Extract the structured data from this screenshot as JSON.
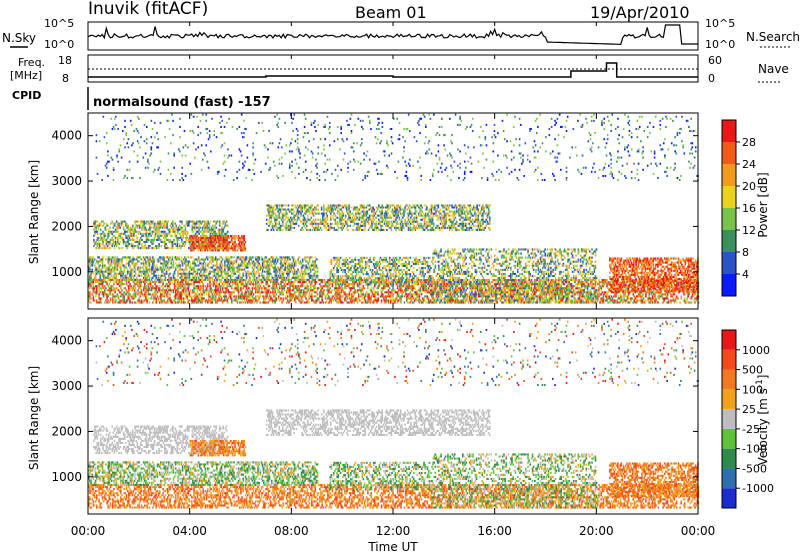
{
  "header": {
    "station": "Inuvik (fitACF)",
    "beam": "Beam 01",
    "date": "19/Apr/2010"
  },
  "noise_panel": {
    "left_label": "N.Sky",
    "right_label": "N.Search",
    "left_ticks": [
      "10^5",
      "10^0"
    ],
    "right_ticks": [
      "10^5",
      "10^0"
    ]
  },
  "freq_panel": {
    "left_label_1": "Freq.",
    "left_label_2": "[MHz]",
    "right_label": "Nave",
    "left_ticks": [
      "18",
      "8"
    ],
    "right_ticks": [
      "60",
      "0"
    ]
  },
  "cpid": {
    "label": "CPID",
    "program": "normalsound (fast) -157"
  },
  "chart_data": [
    {
      "type": "heatmap",
      "panel": "power",
      "ylabel": "Slant Range [km]",
      "yticks": [
        "1000",
        "2000",
        "3000",
        "4000"
      ],
      "ylim": [
        180,
        4500
      ],
      "xlim_hours": [
        0,
        24
      ],
      "colorbar": {
        "label": "Power [dB]",
        "ticks": [
          "4",
          "8",
          "12",
          "16",
          "20",
          "24",
          "28"
        ],
        "colors": [
          "#0a1aff",
          "#2a52c8",
          "#3b8f5c",
          "#7ac34a",
          "#e8d21e",
          "#f29a1c",
          "#f25a1a",
          "#e81818"
        ]
      }
    },
    {
      "type": "heatmap",
      "panel": "velocity",
      "ylabel": "Slant Range [km]",
      "yticks": [
        "1000",
        "2000",
        "3000",
        "4000"
      ],
      "ylim": [
        180,
        4500
      ],
      "xlim_hours": [
        0,
        24
      ],
      "colorbar": {
        "label": "Velocity [m s^-1]",
        "ticks": [
          "1000",
          "500",
          "100",
          "25",
          "-25",
          "-100",
          "-500",
          "-1000"
        ],
        "colors": [
          "#1a2ed0",
          "#2f6fb0",
          "#2e8a4e",
          "#5fc23a",
          "#bdbdbd",
          "#f2a11c",
          "#f27a1a",
          "#f24a1a",
          "#e81818"
        ]
      }
    }
  ],
  "xaxis": {
    "ticks": [
      "00:00",
      "04:00",
      "08:00",
      "12:00",
      "16:00",
      "20:00",
      "00:00"
    ],
    "label": "Time UT"
  }
}
